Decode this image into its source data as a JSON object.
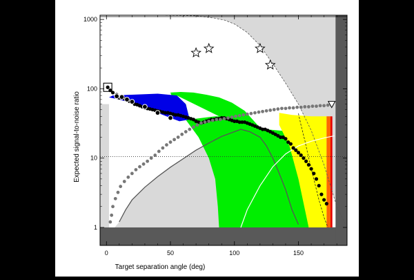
{
  "chart_data": {
    "type": "scatter",
    "title": "",
    "xlabel": "Target separation angle (deg)",
    "ylabel": "Expected signal-to-noise ratio",
    "xlim": [
      -5,
      188
    ],
    "ylim": [
      0.55,
      1150
    ],
    "y_scale": "log",
    "x_ticks": [
      0,
      50,
      100,
      150
    ],
    "y_ticks": [
      1,
      10,
      100,
      1000
    ],
    "grid": false,
    "colors": {
      "light_region": "#d9d9d9",
      "dark_band": "#595959",
      "blue_region": "#0000e6",
      "green_region": "#00ee00",
      "yellow_region": "#ffff00",
      "orange_band": "#ff6600",
      "red_edge": "#e60000",
      "black_points": "#000000",
      "gray_points": "#777777"
    },
    "reference_lines": {
      "upper_solid_y": 1150,
      "dotted_y": 10.5,
      "dashed_envelope": [
        [
          -5,
          1150
        ],
        [
          40,
          1150
        ],
        [
          70,
          1130
        ],
        [
          85,
          1040
        ],
        [
          92,
          980
        ],
        [
          100,
          860
        ],
        [
          110,
          650
        ],
        [
          120,
          420
        ],
        [
          130,
          230
        ],
        [
          140,
          120
        ],
        [
          150,
          60
        ],
        [
          160,
          25
        ],
        [
          170,
          8
        ],
        [
          180,
          2
        ],
        [
          188,
          1
        ]
      ]
    },
    "regions": {
      "blue": [
        [
          2,
          75
        ],
        [
          10,
          70
        ],
        [
          20,
          62
        ],
        [
          30,
          55
        ],
        [
          40,
          45
        ],
        [
          50,
          38
        ],
        [
          57,
          34
        ],
        [
          65,
          36
        ],
        [
          62,
          60
        ],
        [
          55,
          80
        ],
        [
          40,
          85
        ],
        [
          20,
          82
        ],
        [
          5,
          80
        ]
      ],
      "green": [
        [
          55,
          80
        ],
        [
          62,
          60
        ],
        [
          65,
          36
        ],
        [
          75,
          38
        ],
        [
          85,
          40
        ],
        [
          92,
          40
        ],
        [
          100,
          35
        ],
        [
          115,
          28
        ],
        [
          125,
          26
        ],
        [
          135,
          25
        ],
        [
          145,
          24
        ],
        [
          160,
          2
        ],
        [
          170,
          1
        ],
        [
          88,
          1
        ],
        [
          87,
          2
        ],
        [
          85,
          5
        ],
        [
          80,
          10
        ],
        [
          72,
          20
        ],
        [
          60,
          40
        ],
        [
          55,
          50
        ],
        [
          50,
          88
        ],
        [
          58,
          90
        ],
        [
          68,
          88
        ],
        [
          78,
          82
        ],
        [
          88,
          75
        ],
        [
          98,
          63
        ],
        [
          108,
          48
        ],
        [
          118,
          30
        ],
        [
          128,
          20
        ],
        [
          135,
          15
        ]
      ],
      "yellow": [
        [
          135,
          45
        ],
        [
          145,
          42
        ],
        [
          160,
          40
        ],
        [
          172,
          40
        ],
        [
          172,
          1
        ],
        [
          158,
          1
        ],
        [
          150,
          5
        ],
        [
          143,
          15
        ],
        [
          135,
          30
        ]
      ],
      "orange": [
        [
          172,
          40
        ],
        [
          175,
          40
        ],
        [
          175,
          1
        ],
        [
          172,
          1
        ]
      ]
    },
    "curves": {
      "gray_rising": [
        [
          10,
          1.2
        ],
        [
          15,
          1.8
        ],
        [
          20,
          2.5
        ],
        [
          30,
          3.8
        ],
        [
          40,
          5.4
        ],
        [
          50,
          7.4
        ],
        [
          60,
          9.8
        ],
        [
          70,
          13
        ],
        [
          80,
          16.5
        ],
        [
          90,
          20.5
        ],
        [
          100,
          24
        ],
        [
          105,
          26
        ]
      ],
      "gray_falling": [
        [
          105,
          26
        ],
        [
          112,
          24
        ],
        [
          120,
          20
        ],
        [
          125,
          15
        ],
        [
          130,
          10
        ],
        [
          135,
          6
        ],
        [
          140,
          3.5
        ],
        [
          145,
          1.8
        ],
        [
          150,
          1.1
        ]
      ],
      "white_rising": [
        [
          105,
          1
        ],
        [
          110,
          1.8
        ],
        [
          120,
          4
        ],
        [
          130,
          7.5
        ],
        [
          140,
          11.5
        ],
        [
          150,
          15
        ],
        [
          160,
          17.5
        ],
        [
          170,
          19.5
        ],
        [
          178,
          21
        ]
      ],
      "white_dashed": [
        [
          150,
          44
        ],
        [
          152,
          30
        ],
        [
          155,
          18
        ],
        [
          158,
          10
        ],
        [
          162,
          5
        ],
        [
          166,
          2.5
        ],
        [
          170,
          1.4
        ],
        [
          173,
          1
        ]
      ]
    },
    "series": [
      {
        "name": "",
        "marker": "filled-circle",
        "x": [
          3,
          5,
          8,
          10,
          14,
          16,
          18,
          20,
          22,
          24,
          26,
          28,
          30,
          32,
          34,
          36,
          38,
          40,
          42,
          44,
          46,
          48,
          50,
          52,
          54,
          56,
          58,
          60,
          62,
          64,
          66,
          68,
          70,
          72,
          74,
          76,
          78,
          80,
          82,
          84,
          86,
          88,
          90,
          92,
          94,
          96,
          98,
          100,
          102,
          104,
          106,
          108,
          110,
          112,
          114,
          116,
          118,
          120,
          122,
          124,
          126,
          128,
          130,
          132,
          134,
          136,
          138,
          140,
          142,
          144,
          146,
          148,
          150,
          152,
          154,
          156,
          158,
          160,
          162,
          164,
          166,
          168,
          170,
          172
        ],
        "y": [
          95,
          88,
          82,
          74,
          72,
          70,
          66,
          64,
          60,
          59,
          57,
          55,
          53,
          52,
          51,
          50,
          49,
          48,
          47,
          46,
          45,
          45,
          44,
          43,
          42,
          42,
          41,
          40,
          39,
          38,
          37,
          36,
          34,
          33,
          32,
          33,
          34,
          35,
          36,
          36,
          37,
          37,
          38,
          38,
          37,
          36,
          35,
          34,
          34,
          33,
          33,
          33,
          32,
          31,
          30,
          29,
          28,
          27,
          26,
          26,
          25,
          24,
          23,
          22,
          21,
          20,
          20,
          19,
          17,
          16,
          14,
          13,
          12,
          11,
          10,
          9,
          8,
          7,
          6,
          5,
          4,
          3,
          2.5,
          2.2
        ]
      },
      {
        "name": "",
        "marker": "gray-circle",
        "x": [
          3,
          4,
          5,
          7,
          9,
          11,
          14,
          17,
          20,
          23,
          26,
          29,
          32,
          35,
          38,
          41,
          44,
          47,
          50,
          53,
          56,
          59,
          62,
          65,
          68,
          71,
          74,
          77,
          80,
          83,
          86,
          89,
          92,
          95,
          98,
          101,
          104,
          107,
          110,
          113,
          116,
          119,
          122,
          125,
          128,
          131,
          134,
          137,
          140,
          143,
          146,
          149,
          152,
          155,
          158,
          161,
          164,
          167,
          170,
          173,
          176
        ],
        "y": [
          1.2,
          1.5,
          2,
          2.6,
          3.2,
          3.9,
          4.6,
          5.3,
          6,
          6.8,
          7.5,
          8.2,
          9,
          10,
          11,
          12.5,
          14,
          15.5,
          17,
          18.5,
          20,
          22,
          24,
          26,
          28,
          30,
          32,
          33,
          34,
          35,
          36,
          36,
          37,
          38,
          39,
          40,
          41,
          42,
          43,
          44,
          45,
          46,
          47,
          48,
          49,
          50,
          51,
          52,
          52,
          53,
          53,
          54,
          54,
          55,
          55,
          56,
          56,
          57,
          57,
          58,
          58
        ]
      },
      {
        "name": "",
        "marker": "open-circle",
        "x": [
          8,
          12,
          16,
          20,
          30,
          40,
          50
        ],
        "y": [
          78,
          76,
          70,
          65,
          55,
          45,
          38
        ]
      },
      {
        "name": "",
        "marker": "star",
        "x": [
          70,
          80,
          120,
          128
        ],
        "y": [
          330,
          380,
          380,
          220
        ]
      },
      {
        "name": "",
        "marker": "square",
        "x": [
          1
        ],
        "y": [
          105
        ]
      },
      {
        "name": "",
        "marker": "triangle-down",
        "x": [
          176
        ],
        "y": [
          60
        ]
      }
    ]
  }
}
